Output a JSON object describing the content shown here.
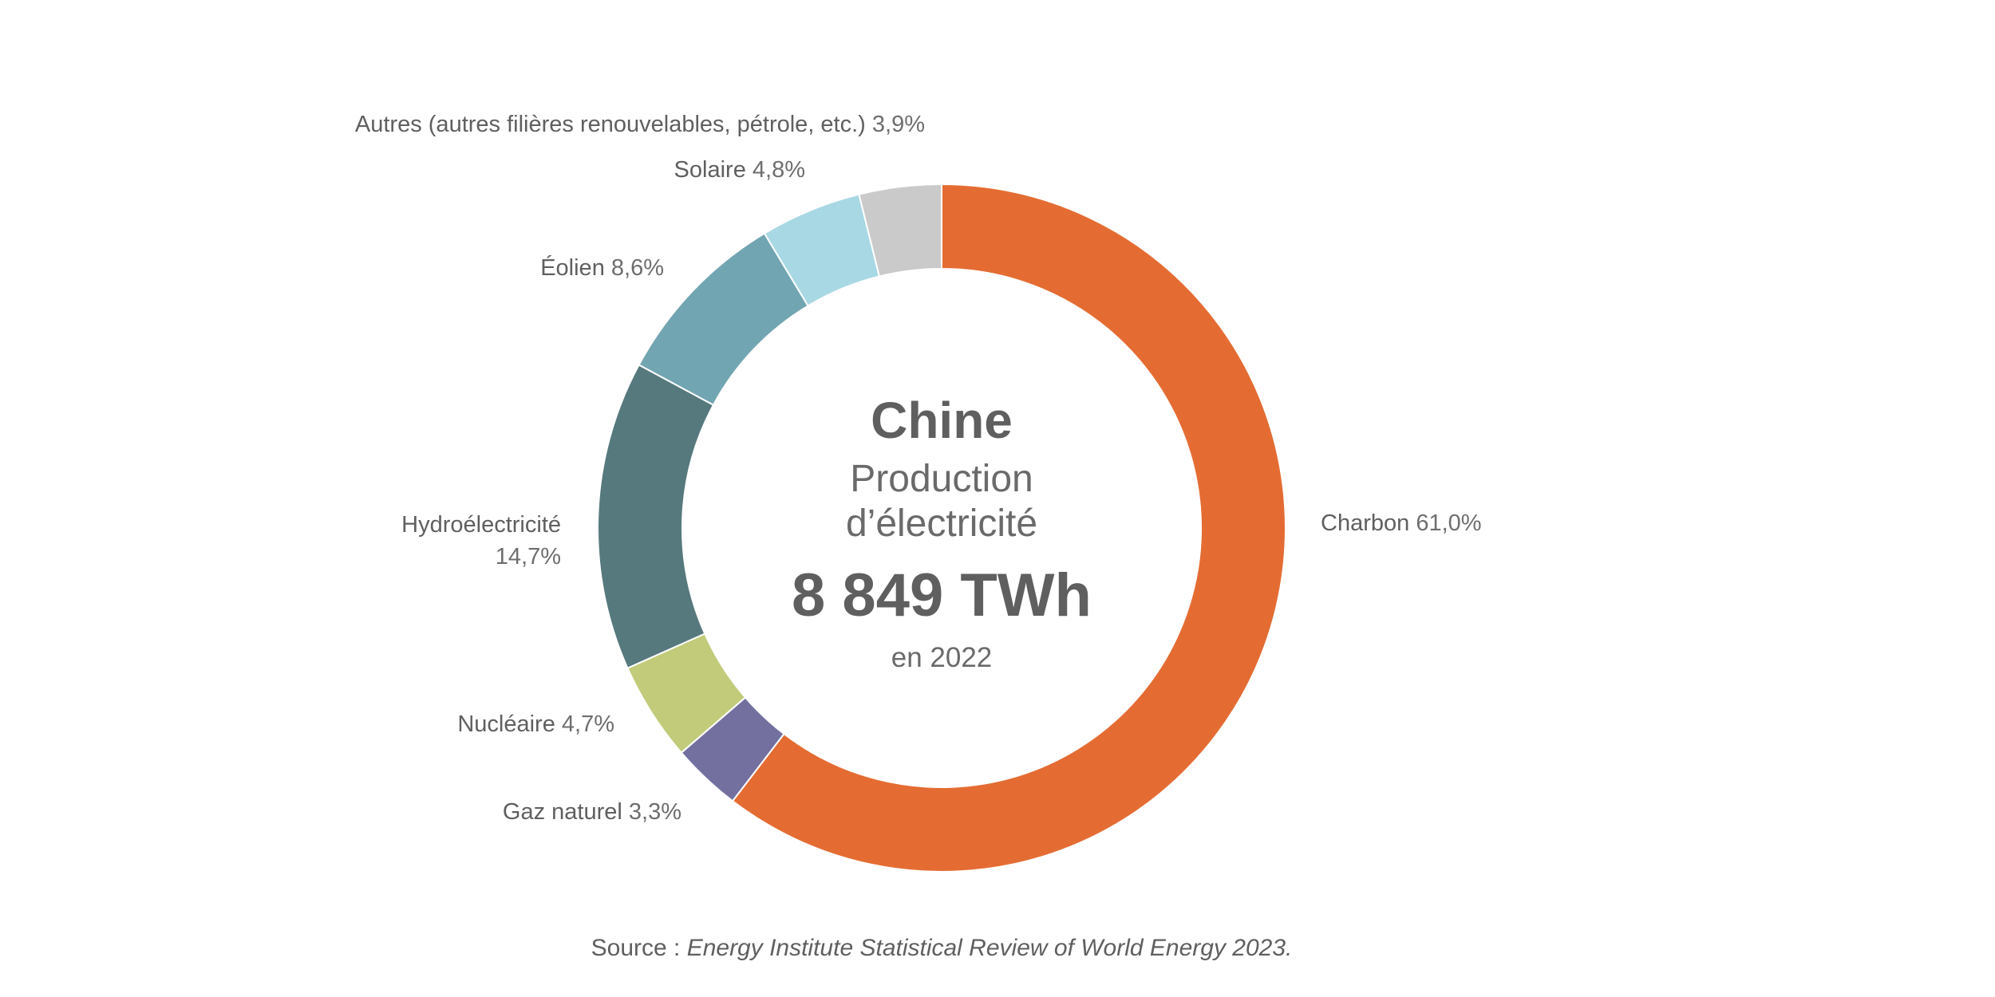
{
  "chart_data": {
    "type": "pie",
    "variant": "donut",
    "center": {
      "title": "Chine",
      "subtitle_line1": "Production",
      "subtitle_line2": "d’électricité",
      "total": "8 849 TWh",
      "year": "en 2022"
    },
    "slices": [
      {
        "name": "Charbon",
        "value": 61.0,
        "label": "61,0%",
        "color": "#E46C32"
      },
      {
        "name": "Gaz naturel",
        "value": 3.3,
        "label": "3,3%",
        "color": "#73709F"
      },
      {
        "name": "Nucléaire",
        "value": 4.7,
        "label": "4,7%",
        "color": "#C1CB7A"
      },
      {
        "name": "Hydroélectricité",
        "value": 14.7,
        "label": "14,7%",
        "color": "#56797E"
      },
      {
        "name": "Éolien",
        "value": 8.6,
        "label": "8,6%",
        "color": "#71A5B1"
      },
      {
        "name": "Solaire",
        "value": 4.8,
        "label": "4,8%",
        "color": "#A8D8E3"
      },
      {
        "name": "Autres (autres filières renouvelables, pétrole, etc.)",
        "value": 3.9,
        "label": "3,9%",
        "color": "#CACACA"
      }
    ],
    "source_label": "Source : ",
    "source": "Energy Institute Statistical Review of World Energy 2023."
  }
}
